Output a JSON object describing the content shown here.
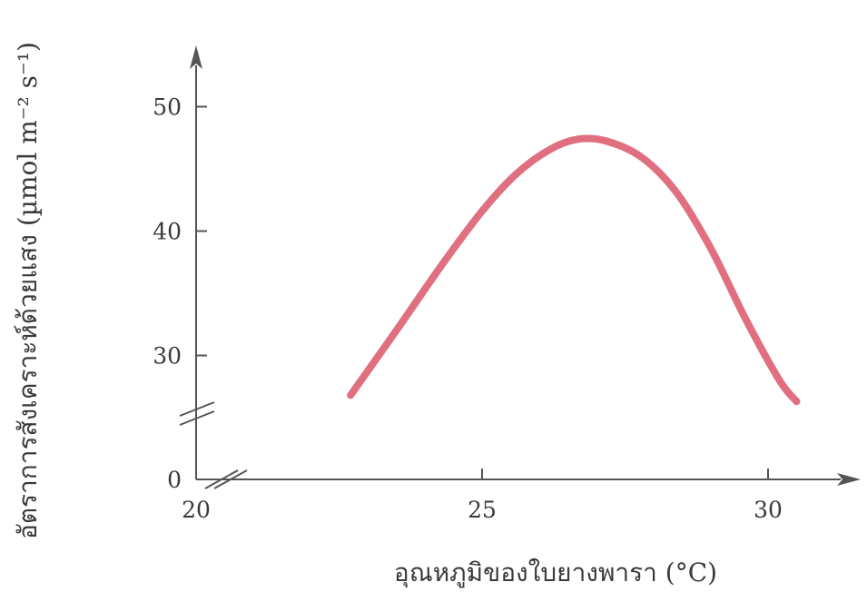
{
  "chart_data": {
    "type": "line",
    "title": "",
    "xlabel": "อุณหภูมิของใบยางพารา (°C)",
    "ylabel": "อัตราการสังเคราะห์ด้วยแสง (µmol m⁻² s⁻¹)",
    "xlim": [
      20,
      31.5
    ],
    "ylim": [
      0,
      55
    ],
    "y_axis_break": [
      0,
      25
    ],
    "x_axis_break": true,
    "x_ticks": [
      {
        "value": 20,
        "label": "20"
      },
      {
        "value": 25,
        "label": "25"
      },
      {
        "value": 30,
        "label": "30"
      }
    ],
    "y_ticks": [
      {
        "value": 0,
        "label": "0"
      },
      {
        "value": 30,
        "label": "30"
      },
      {
        "value": 40,
        "label": "40"
      },
      {
        "value": 50,
        "label": "50"
      }
    ],
    "grid": false,
    "series": [
      {
        "color": "#e0707f",
        "x": [
          22.7,
          23.5,
          24.3,
          25.0,
          25.6,
          26.2,
          26.7,
          27.2,
          27.8,
          28.4,
          29.0,
          29.6,
          30.2,
          30.5
        ],
        "y": [
          26.8,
          32.0,
          37.3,
          41.6,
          44.6,
          46.6,
          47.4,
          47.2,
          45.9,
          43.1,
          38.6,
          33.0,
          28.0,
          26.3
        ]
      }
    ]
  }
}
